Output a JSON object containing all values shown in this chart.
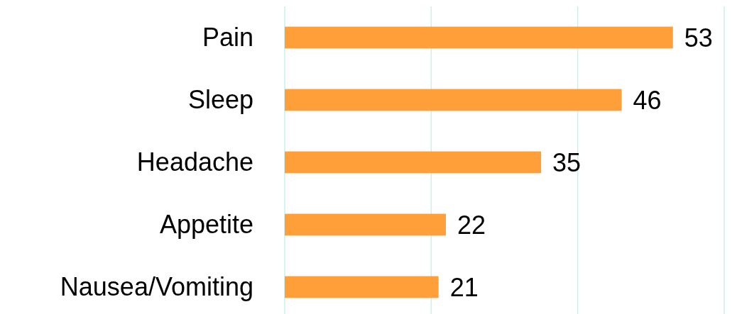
{
  "chart_data": {
    "type": "bar",
    "orientation": "horizontal",
    "categories": [
      "Pain",
      "Sleep",
      "Headache",
      "Appetite",
      "Nausea/Vomiting"
    ],
    "values": [
      53,
      46,
      35,
      22,
      21
    ],
    "color": "#ff9f3a",
    "xlim": [
      0,
      60
    ],
    "xticks": [
      {
        "value": 0,
        "label": null
      },
      {
        "value": 20,
        "label": null
      },
      {
        "value": 40,
        "label": null
      },
      {
        "value": 60,
        "label": null
      }
    ],
    "grid": "x",
    "tick_labels": "y",
    "data_labels": true
  }
}
